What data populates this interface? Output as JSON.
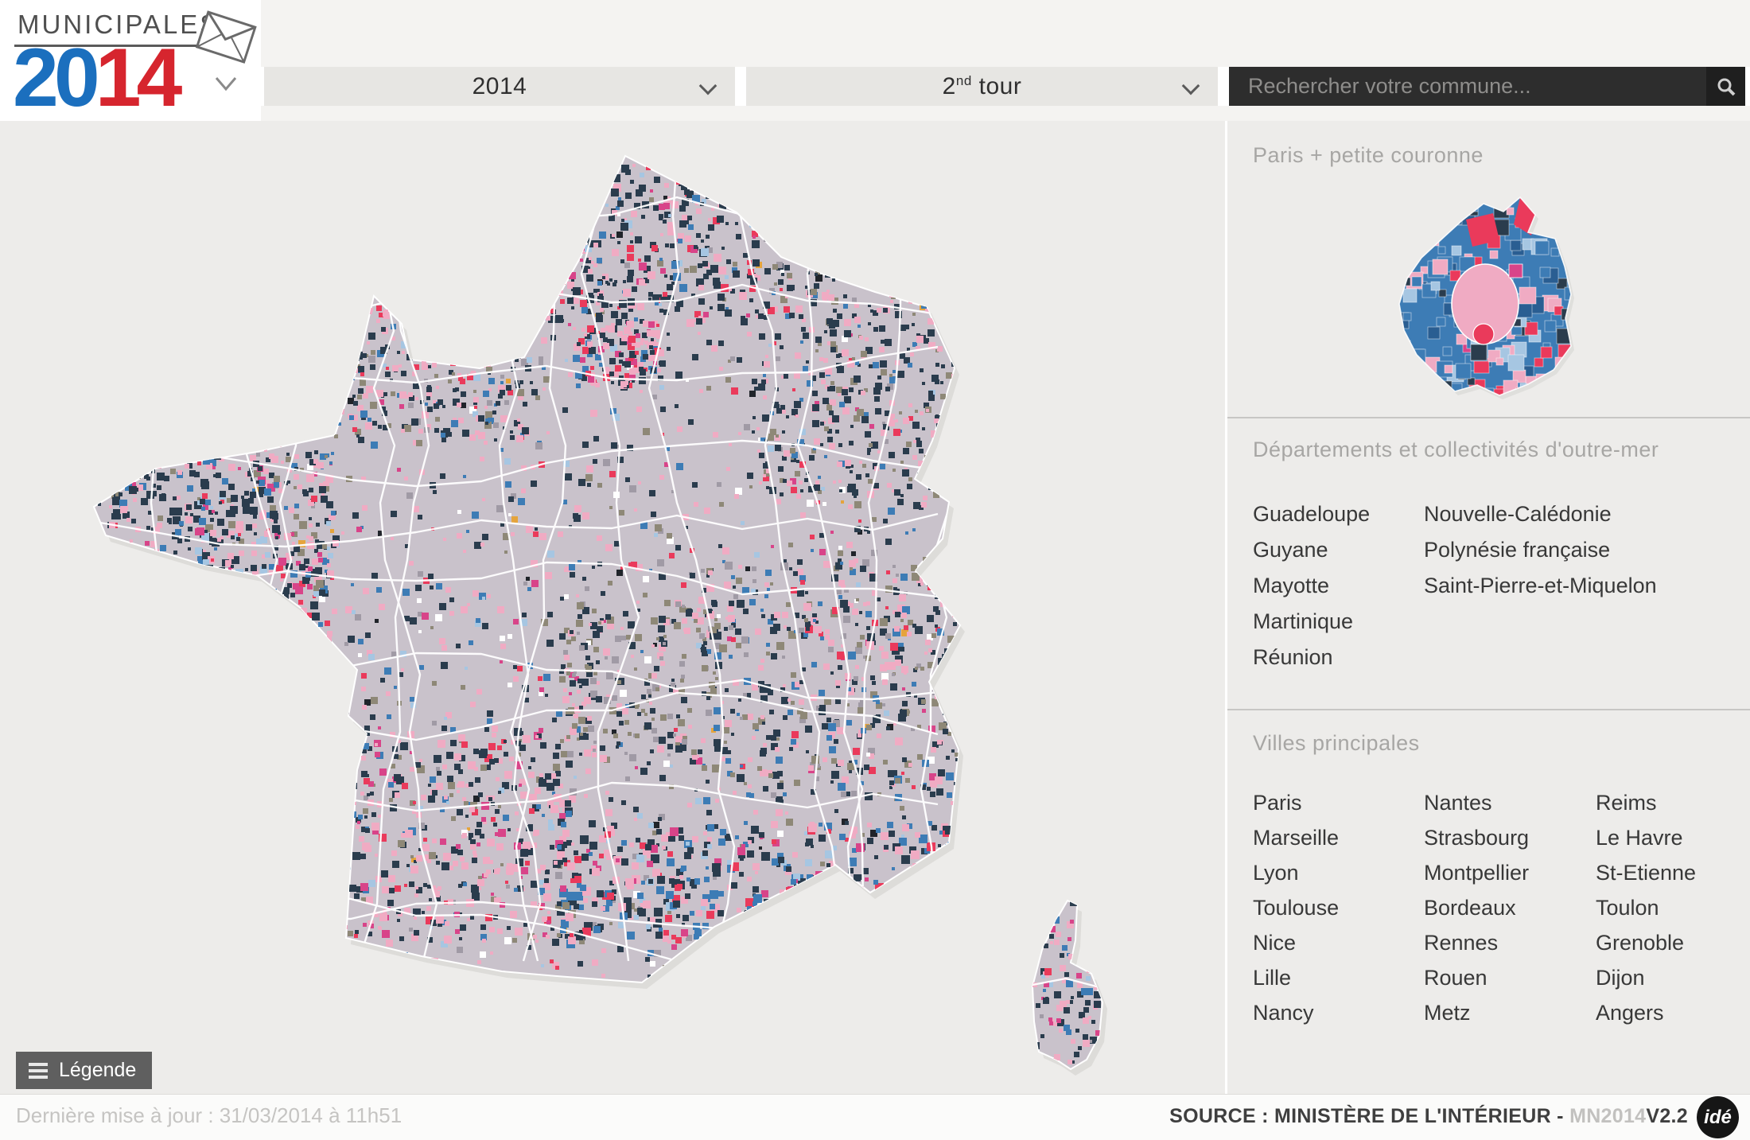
{
  "logo": {
    "line1": "MUNICIPALES",
    "year_blue": "20",
    "year_red": "14"
  },
  "toolbar": {
    "year_dropdown": {
      "value": "2014"
    },
    "round_dropdown": {
      "base": "2",
      "sup": "nd",
      "rest": " tour"
    },
    "search": {
      "placeholder": "Rechercher votre commune..."
    }
  },
  "sidebar": {
    "paris_section": {
      "title": "Paris + petite couronne"
    },
    "outremer_section": {
      "title": "Départements et collectivités d'outre-mer",
      "col1": [
        "Guadeloupe",
        "Guyane",
        "Mayotte",
        "Martinique",
        "Réunion"
      ],
      "col2": [
        "Nouvelle-Calédonie",
        "Polynésie française",
        "Saint-Pierre-et-Miquelon"
      ]
    },
    "villes_section": {
      "title": "Villes principales",
      "col1": [
        "Paris",
        "Marseille",
        "Lyon",
        "Toulouse",
        "Nice",
        "Lille",
        "Nancy"
      ],
      "col2": [
        "Nantes",
        "Strasbourg",
        "Montpellier",
        "Bordeaux",
        "Rennes",
        "Rouen",
        "Metz"
      ],
      "col3": [
        "Reims",
        "Le Havre",
        "St-Etienne",
        "Toulon",
        "Grenoble",
        "Dijon",
        "Angers"
      ]
    }
  },
  "footer": {
    "legend_button": "Légende",
    "last_update": "Dernière mise à jour : 31/03/2014 à 11h51",
    "source_prefix": "SOURCE : MINISTÈRE DE L'INTÉRIEUR - ",
    "source_code": "MN2014",
    "source_version": "V2.2",
    "ide_logo": "idé"
  },
  "map": {
    "colors": {
      "ocean": "#edecea",
      "base": "#c9c2cb",
      "navy": "#2a3c4d",
      "pink": "#f0abc3",
      "blue": "#3d7cb5",
      "darkblue": "#2a5e92",
      "lightblue": "#a6c6e2",
      "red": "#ea3a5b",
      "magenta": "#d84489",
      "olive": "#8e8877",
      "gray": "#a09aa5",
      "black": "#20242a",
      "orange": "#e5a43c",
      "white": "#ffffff",
      "border": "#ffffff"
    }
  }
}
